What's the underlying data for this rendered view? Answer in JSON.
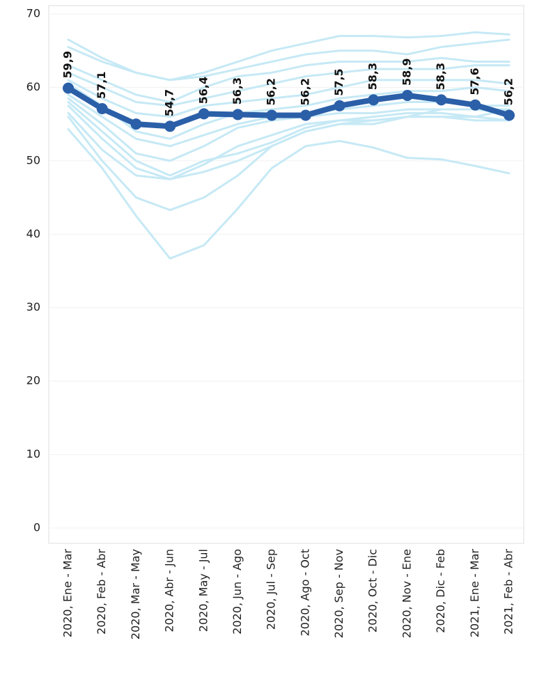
{
  "chart_data": {
    "type": "line",
    "categories": [
      "2020, Ene - Mar",
      "2020, Feb - Abr",
      "2020, Mar - May",
      "2020, Abr - Jun",
      "2020, May - Jul",
      "2020, Jun - Ago",
      "2020, Jul - Sep",
      "2020, Ago - Oct",
      "2020, Sep - Nov",
      "2020, Oct - Dic",
      "2020, Nov - Ene",
      "2020, Dic - Feb",
      "2021, Ene - Mar",
      "2021, Feb - Abr"
    ],
    "ylim": [
      0,
      70
    ],
    "yticks": [
      0,
      10,
      20,
      30,
      40,
      50,
      60,
      70
    ],
    "grid": true,
    "series": [
      {
        "color": "#2b5fa8",
        "values": [
          59.9,
          57.1,
          55.0,
          54.7,
          56.4,
          56.3,
          56.2,
          56.2,
          57.5,
          58.3,
          58.9,
          58.3,
          57.6,
          56.2
        ],
        "value_labels": [
          "59,9",
          "57,1",
          null,
          "54,7",
          "56,4",
          "56,3",
          "56,2",
          "56,2",
          "57,5",
          "58,3",
          "58,9",
          "58,3",
          "57,6",
          "56,2"
        ]
      },
      {
        "color": "#c6e9f5",
        "values": [
          66.5,
          64,
          62,
          61,
          62,
          63.5,
          65,
          66,
          67,
          67,
          66.8,
          67,
          67.5,
          67.2
        ]
      },
      {
        "color": "#c6e9f5",
        "values": [
          65.5,
          63.5,
          62,
          61,
          61.5,
          62.5,
          63.5,
          64.5,
          65,
          65,
          64.5,
          65.5,
          66,
          66.5
        ]
      },
      {
        "color": "#c6e9f5",
        "values": [
          63,
          61,
          59,
          58,
          60,
          61.5,
          62,
          63,
          63.5,
          63.5,
          63.5,
          64,
          63.5,
          63.5
        ]
      },
      {
        "color": "#c6e9f5",
        "values": [
          62,
          60,
          58,
          57.5,
          58.5,
          59.5,
          60.5,
          61.5,
          62,
          62.5,
          62.5,
          62.5,
          63,
          63
        ]
      },
      {
        "color": "#c6e9f5",
        "values": [
          61,
          58.5,
          56.5,
          56,
          57.5,
          58,
          58.5,
          59,
          60,
          61,
          61,
          61,
          61,
          60.5
        ]
      },
      {
        "color": "#c6e9f5",
        "values": [
          60.5,
          57.5,
          54,
          53,
          55,
          56.5,
          57,
          57.5,
          58.5,
          59,
          59.5,
          59.5,
          60,
          59.5
        ]
      },
      {
        "color": "#c6e9f5",
        "values": [
          59,
          56,
          53,
          52,
          53.5,
          55,
          56,
          56.5,
          57,
          57.5,
          58,
          58,
          57.5,
          57.5
        ]
      },
      {
        "color": "#c6e9f5",
        "values": [
          58.5,
          55,
          51,
          50,
          52,
          54.5,
          55.5,
          56,
          56.5,
          56.5,
          57,
          57,
          57,
          56.5
        ]
      },
      {
        "color": "#c6e9f5",
        "values": [
          58,
          54,
          50,
          48,
          50,
          51,
          52.5,
          54.5,
          55.5,
          56,
          56.5,
          56.5,
          56,
          55.5
        ]
      },
      {
        "color": "#c6e9f5",
        "values": [
          57.5,
          53,
          49,
          47.5,
          49.5,
          52,
          53.5,
          55,
          55.5,
          55.5,
          56,
          56,
          55.5,
          55.5
        ]
      },
      {
        "color": "#c6e9f5",
        "values": [
          56.5,
          51.5,
          48,
          47.5,
          48.5,
          50,
          52,
          54,
          55,
          55,
          56,
          56,
          56,
          57
        ]
      },
      {
        "color": "#c6e9f5",
        "values": [
          56,
          50,
          45,
          43.3,
          45,
          48,
          52,
          54,
          55,
          55.5,
          56,
          57,
          57,
          57
        ]
      },
      {
        "color": "#c6e9f5",
        "values": [
          54.3,
          49,
          42.5,
          36.7,
          38.5,
          43.5,
          49,
          52,
          52.7,
          51.8,
          50.4,
          50.2,
          49.3,
          48.3
        ]
      }
    ]
  }
}
